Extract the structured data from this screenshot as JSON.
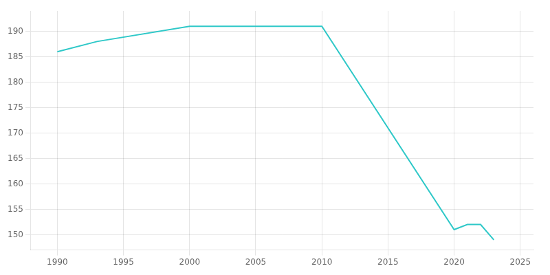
{
  "chart_data": {
    "type": "line",
    "x": [
      1990,
      1993,
      2000,
      2010,
      2020,
      2021,
      2022,
      2023
    ],
    "values": [
      186,
      188,
      191,
      191,
      151,
      152,
      152,
      149
    ],
    "color": "#2ec8c8",
    "xlim": [
      1988,
      2026
    ],
    "xticks": [
      1990,
      1995,
      2000,
      2005,
      2010,
      2015,
      2020,
      2025
    ],
    "ylim": [
      147,
      194
    ],
    "yticks": [
      150,
      155,
      160,
      165,
      170,
      175,
      180,
      185,
      190
    ],
    "grid": true
  }
}
